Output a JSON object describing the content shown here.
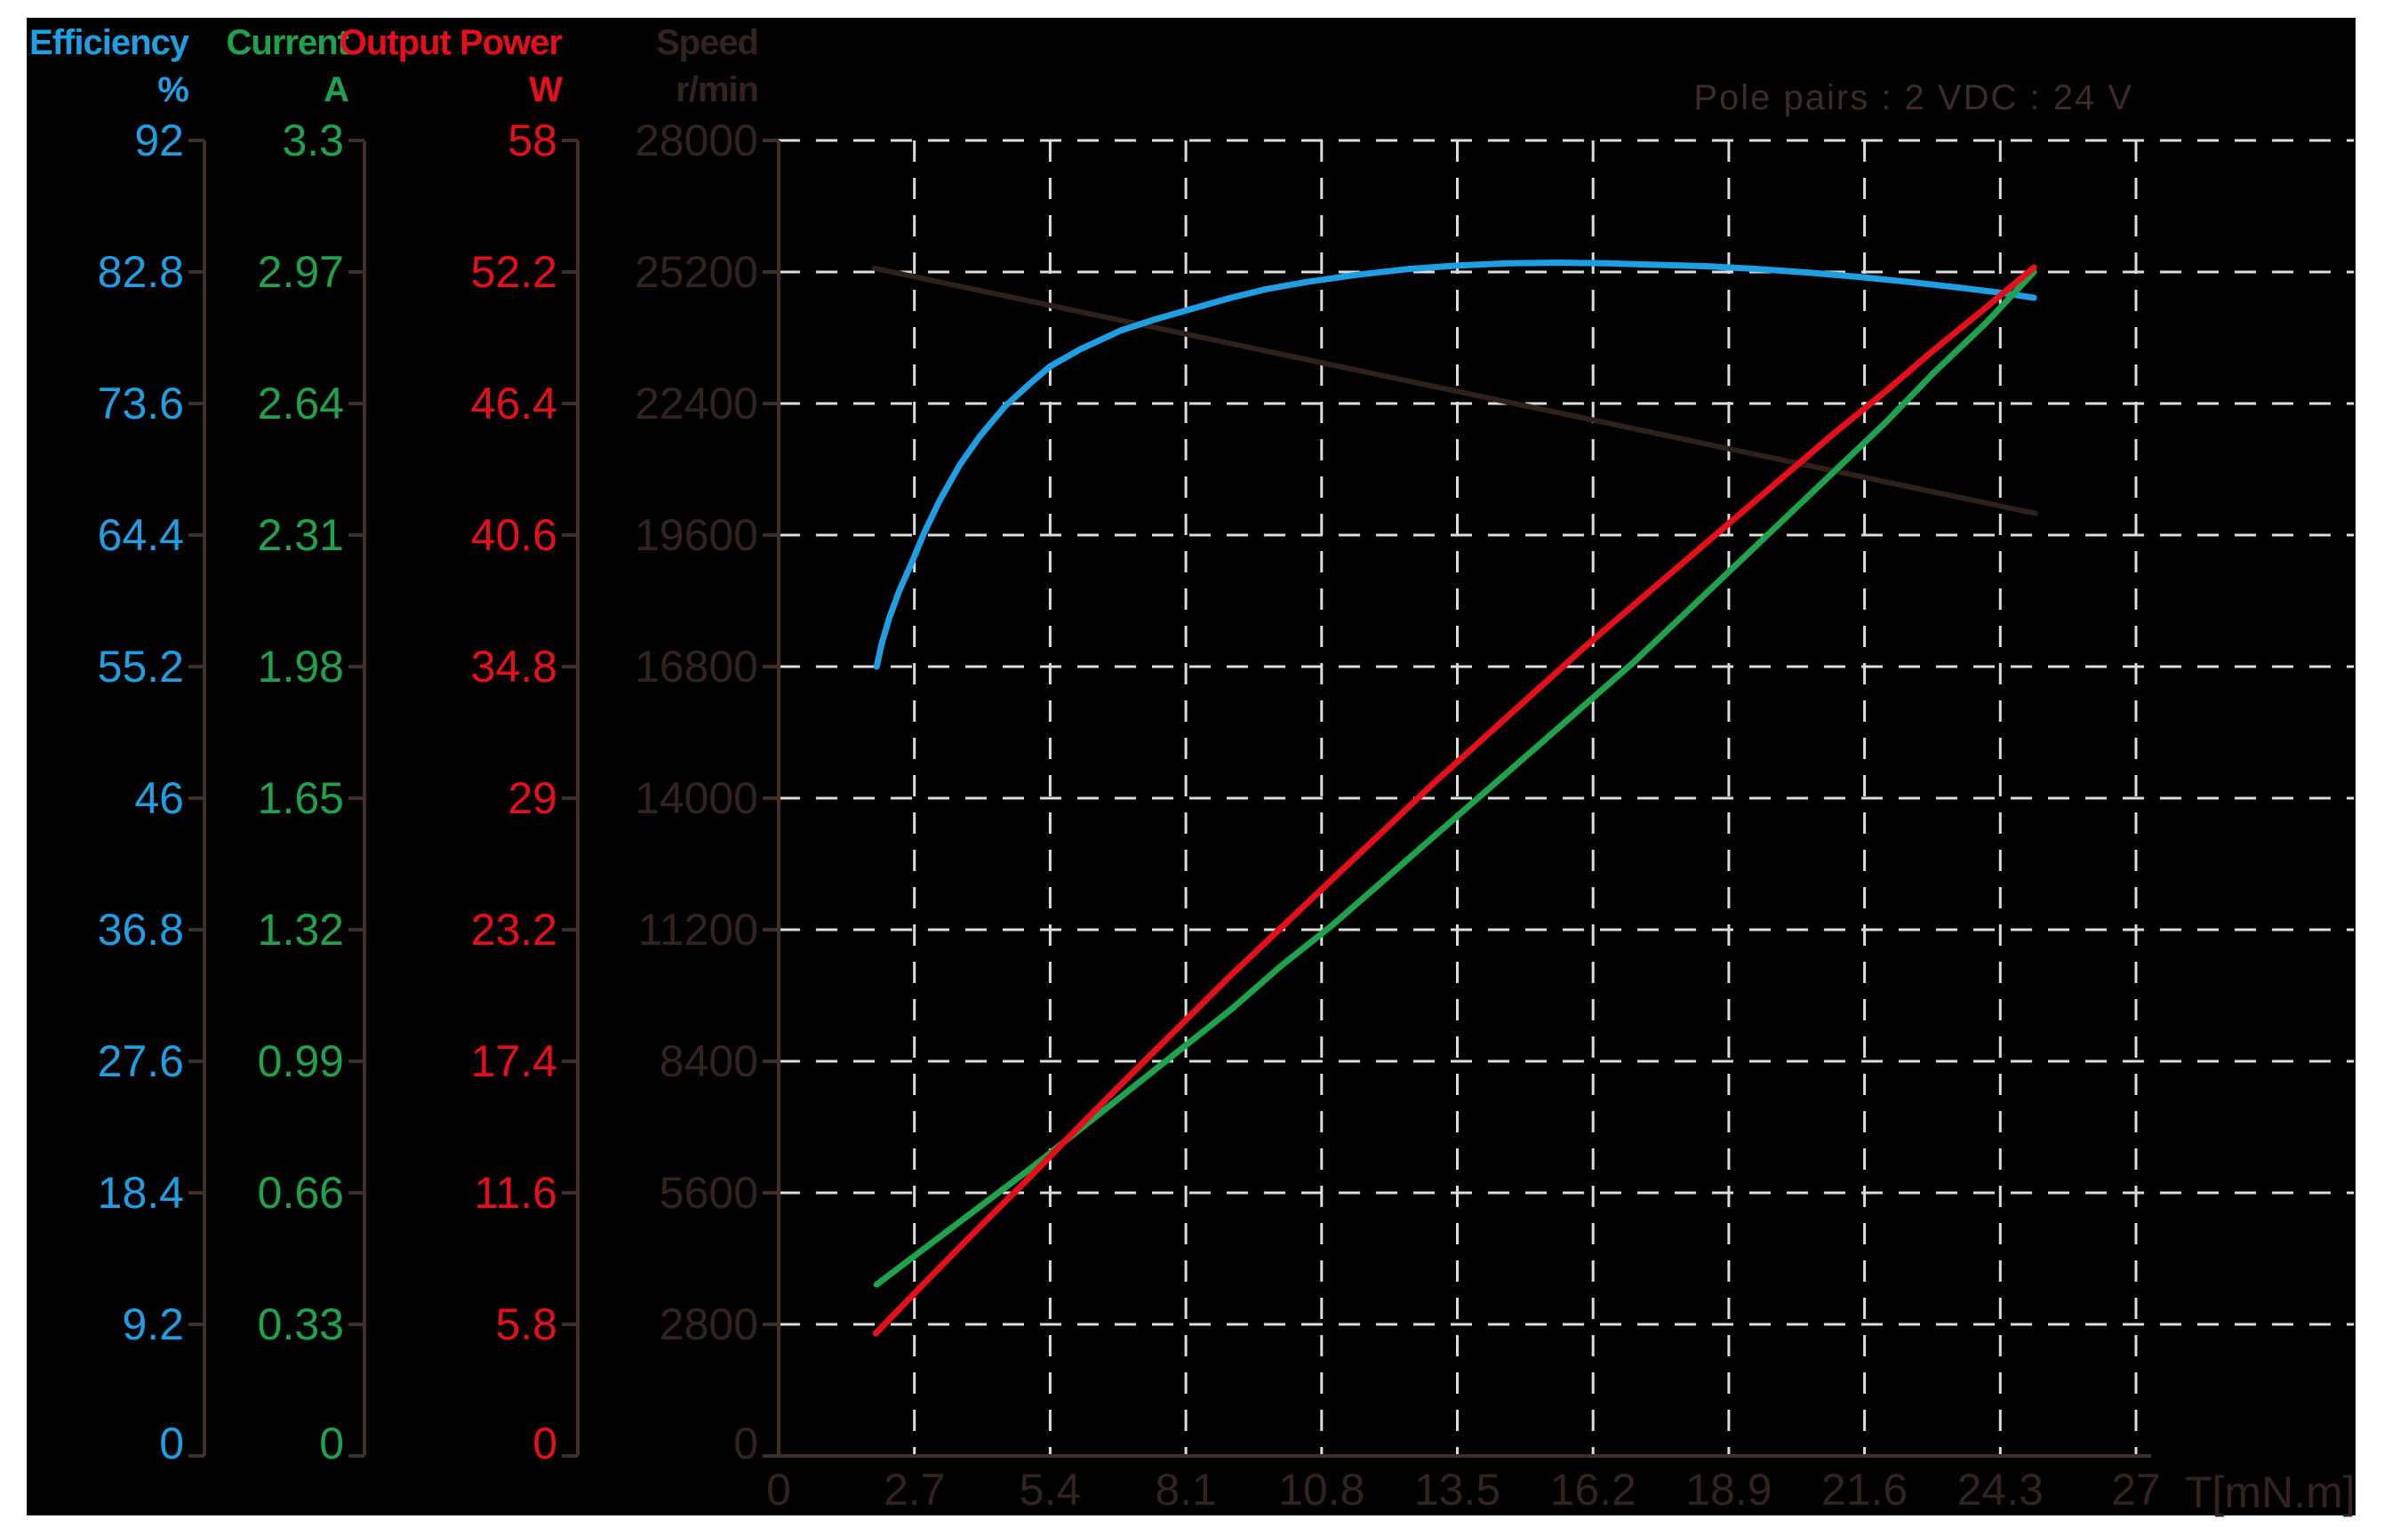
{
  "header": {
    "columns": [
      {
        "title": "Efficiency",
        "unit": "%",
        "color": "#1E9FE4"
      },
      {
        "title": "Current",
        "unit": "A",
        "color": "#1EA24C"
      },
      {
        "title": "Output Power",
        "unit": "W",
        "color": "#E60E1A"
      },
      {
        "title": "Speed",
        "unit": "r/min",
        "color": "#33231E"
      }
    ],
    "annotation": "Pole pairs : 2  VDC : 24 V"
  },
  "colors": {
    "background": "#000000",
    "page_margin": "#ffffff",
    "gridline": "#DCDCDC",
    "axis_line": "#3F2F27",
    "dark_text": "#33231E",
    "annotation_text": "#3C2B26"
  },
  "chart_data": {
    "type": "line",
    "title": "",
    "annotation": "Pole pairs : 2  VDC : 24 V",
    "xlabel": "T[mN.m]",
    "grid": "dashed",
    "x_axis": {
      "label": "T[mN.m]",
      "min": 0,
      "max": 27,
      "ticks": [
        "0",
        "2.7",
        "5.4",
        "8.1",
        "10.8",
        "13.5",
        "16.2",
        "18.9",
        "21.6",
        "24.3",
        "27"
      ]
    },
    "axes": [
      {
        "name": "efficiency",
        "unit": "%",
        "color": "#1E9FE4",
        "min": 0,
        "max": 92,
        "ticks": [
          "92",
          "82.8",
          "73.6",
          "64.4",
          "55.2",
          "46",
          "36.8",
          "27.6",
          "18.4",
          "9.2",
          "0"
        ]
      },
      {
        "name": "current",
        "unit": "A",
        "color": "#1EA24C",
        "min": 0,
        "max": 3.3,
        "ticks": [
          "3.3",
          "2.97",
          "2.64",
          "2.31",
          "1.98",
          "1.65",
          "1.32",
          "0.99",
          "0.66",
          "0.33",
          "0"
        ]
      },
      {
        "name": "power",
        "unit": "W",
        "color": "#E60E1A",
        "min": 0,
        "max": 58,
        "ticks": [
          "58",
          "52.2",
          "46.4",
          "40.6",
          "34.8",
          "29",
          "23.2",
          "17.4",
          "11.6",
          "5.8",
          "0"
        ]
      },
      {
        "name": "speed",
        "unit": "r/min",
        "color": "#33231E",
        "min": 0,
        "max": 28000,
        "ticks": [
          "28000",
          "25200",
          "22400",
          "19600",
          "16800",
          "14000",
          "11200",
          "8400",
          "5600",
          "2800",
          "0"
        ]
      }
    ],
    "series": [
      {
        "name": "speed",
        "axis": "speed",
        "color": "#2F201B",
        "width": 6,
        "points": [
          [
            1.9,
            25280
          ],
          [
            25.0,
            20060
          ]
        ]
      },
      {
        "name": "efficiency",
        "axis": "efficiency",
        "color": "#1E9FE4",
        "width": 7,
        "points": [
          [
            1.95,
            55.2
          ],
          [
            2.05,
            56.8
          ],
          [
            2.2,
            58.6
          ],
          [
            2.4,
            60.5
          ],
          [
            2.65,
            62.5
          ],
          [
            2.9,
            64.6
          ],
          [
            3.2,
            66.8
          ],
          [
            3.6,
            69.3
          ],
          [
            4.0,
            71.3
          ],
          [
            4.5,
            73.4
          ],
          [
            5.0,
            75.0
          ],
          [
            5.4,
            76.2
          ],
          [
            6.0,
            77.4
          ],
          [
            6.8,
            78.7
          ],
          [
            7.5,
            79.5
          ],
          [
            8.1,
            80.1
          ],
          [
            9.0,
            81.0
          ],
          [
            9.7,
            81.6
          ],
          [
            10.5,
            82.1
          ],
          [
            11.5,
            82.6
          ],
          [
            12.5,
            83.0
          ],
          [
            13.5,
            83.25
          ],
          [
            14.5,
            83.4
          ],
          [
            15.5,
            83.45
          ],
          [
            16.5,
            83.4
          ],
          [
            17.5,
            83.3
          ],
          [
            18.5,
            83.2
          ],
          [
            19.5,
            83.0
          ],
          [
            20.5,
            82.75
          ],
          [
            21.5,
            82.45
          ],
          [
            22.5,
            82.1
          ],
          [
            23.5,
            81.7
          ],
          [
            24.3,
            81.35
          ],
          [
            24.97,
            81.0
          ]
        ]
      },
      {
        "name": "current",
        "axis": "current",
        "color": "#1EA24C",
        "width": 7,
        "points": [
          [
            1.95,
            0.43
          ],
          [
            3,
            0.53
          ],
          [
            4,
            0.625
          ],
          [
            5,
            0.72
          ],
          [
            6.1,
            0.83
          ],
          [
            7,
            0.92
          ],
          [
            8,
            1.02
          ],
          [
            9,
            1.12
          ],
          [
            10,
            1.23
          ],
          [
            11,
            1.33
          ],
          [
            12,
            1.44
          ],
          [
            13,
            1.55
          ],
          [
            14,
            1.66
          ],
          [
            15,
            1.77
          ],
          [
            16,
            1.88
          ],
          [
            17,
            1.99
          ],
          [
            18,
            2.11
          ],
          [
            19,
            2.23
          ],
          [
            20,
            2.35
          ],
          [
            21,
            2.47
          ],
          [
            22,
            2.59
          ],
          [
            23,
            2.72
          ],
          [
            24,
            2.84
          ],
          [
            24.97,
            2.97
          ]
        ]
      },
      {
        "name": "output-power",
        "axis": "power",
        "color": "#E60E1A",
        "width": 7,
        "points": [
          [
            1.93,
            5.4
          ],
          [
            3,
            7.85
          ],
          [
            4,
            10.1
          ],
          [
            5,
            12.3
          ],
          [
            6.1,
            14.8
          ],
          [
            7,
            16.8
          ],
          [
            8,
            19.0
          ],
          [
            9,
            21.2
          ],
          [
            10,
            23.3
          ],
          [
            11,
            25.4
          ],
          [
            12,
            27.5
          ],
          [
            13,
            29.6
          ],
          [
            14,
            31.6
          ],
          [
            15,
            33.6
          ],
          [
            16,
            35.6
          ],
          [
            17,
            37.5
          ],
          [
            18,
            39.4
          ],
          [
            19,
            41.3
          ],
          [
            20,
            43.2
          ],
          [
            21,
            45.1
          ],
          [
            22,
            46.9
          ],
          [
            23,
            48.8
          ],
          [
            24,
            50.6
          ],
          [
            24.97,
            52.4
          ]
        ]
      }
    ]
  }
}
